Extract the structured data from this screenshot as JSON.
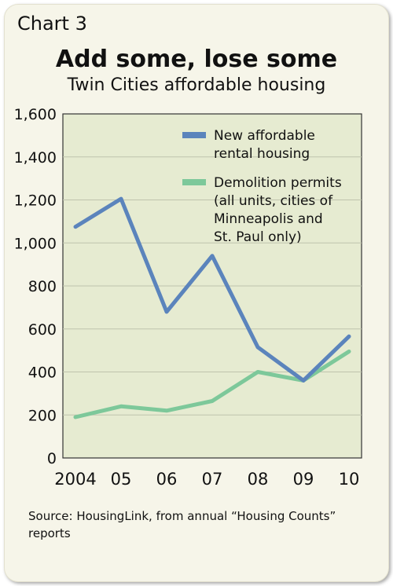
{
  "chart_label": "Chart 3",
  "source": "Source: HousingLink, from annual “Housing Counts” reports",
  "chart_data": {
    "type": "line",
    "title": "Add some, lose some",
    "subtitle": "Twin Cities affordable housing",
    "x": [
      "2004",
      "05",
      "06",
      "07",
      "08",
      "09",
      "10"
    ],
    "ylim": [
      0,
      1600
    ],
    "yticks": [
      0,
      200,
      400,
      600,
      800,
      1000,
      1200,
      1400,
      1600
    ],
    "ytick_labels": [
      "0",
      "200",
      "400",
      "600",
      "800",
      "1,000",
      "1,200",
      "1,400",
      "1,600"
    ],
    "grid": true,
    "legend_position": "top-right",
    "series": [
      {
        "name": "New affordable rental housing",
        "legend_lines": [
          "New affordable",
          "rental housing"
        ],
        "color": "#5b84bc",
        "values": [
          1075,
          1205,
          680,
          940,
          515,
          360,
          565
        ]
      },
      {
        "name": "Demolition permits (all units, cities of Minneapolis and St. Paul only)",
        "legend_lines": [
          "Demolition permits",
          "(all units, cities of",
          "Minneapolis and",
          "St. Paul only)"
        ],
        "color": "#7dc89a",
        "values": [
          190,
          240,
          220,
          265,
          400,
          360,
          495
        ]
      }
    ],
    "plot_background": "#e6ebd1"
  }
}
